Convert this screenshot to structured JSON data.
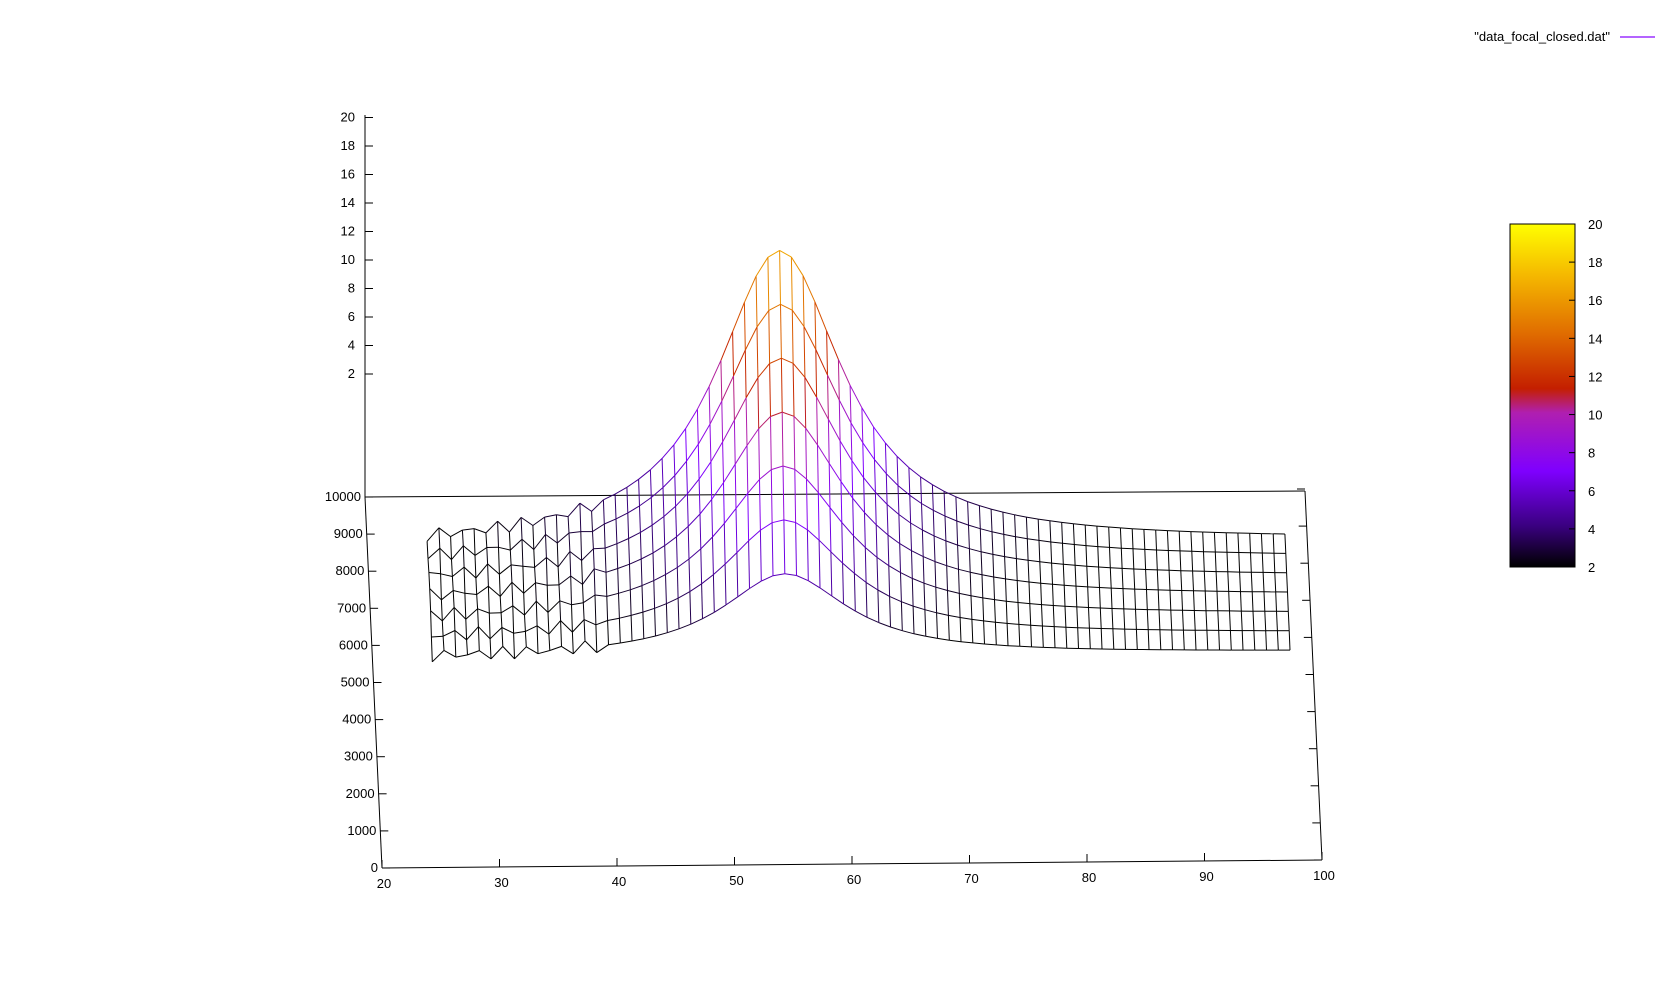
{
  "chart_data": {
    "type": "surface",
    "legend": {
      "entry": "\"data_focal_closed.dat\"",
      "placement": "top-right"
    },
    "x_axis": {
      "ticks": [
        "20",
        "30",
        "40",
        "50",
        "60",
        "70",
        "80",
        "90",
        "100"
      ],
      "range": [
        20,
        100
      ]
    },
    "y_axis": {
      "ticks": [
        "0",
        "1000",
        "2000",
        "3000",
        "4000",
        "5000",
        "6000",
        "7000",
        "8000",
        "9000",
        "10000"
      ],
      "range": [
        0,
        10000
      ]
    },
    "z_axis": {
      "ticks": [
        "2",
        "4",
        "6",
        "8",
        "10",
        "12",
        "14",
        "16",
        "18",
        "20"
      ],
      "range": [
        0,
        20
      ]
    },
    "colorbar": {
      "ticks": [
        "2",
        "4",
        "6",
        "8",
        "10",
        "12",
        "14",
        "16",
        "18",
        "20"
      ],
      "range": [
        2,
        20
      ]
    },
    "palette": [
      "#000000",
      "#3a0080",
      "#7f00ff",
      "#b01fb0",
      "#c41f00",
      "#e06c00",
      "#f5b800",
      "#ffff00"
    ],
    "x_samples": [
      25,
      26,
      27,
      28,
      29,
      30,
      31,
      32,
      33,
      34,
      35,
      36,
      37,
      38,
      39,
      40,
      41,
      42,
      43,
      44,
      45,
      46,
      47,
      48,
      49,
      50,
      51,
      52,
      53,
      54,
      55,
      56,
      57,
      58,
      59,
      60,
      61,
      62,
      63,
      64,
      65,
      66,
      67,
      68,
      69,
      70,
      71,
      72,
      73,
      74,
      75,
      76,
      77,
      78,
      79,
      80,
      81,
      82,
      83,
      84,
      85,
      86,
      87,
      88,
      89,
      90,
      91,
      92,
      93,
      94,
      95,
      96,
      97,
      98
    ],
    "surface_profile": {
      "peak_x": 55,
      "peak_z": 15.5,
      "base_z": 1.2,
      "width": 6.5,
      "y_rows": [
        8000,
        7500,
        7000,
        6500,
        6000,
        5500,
        5000
      ]
    }
  }
}
